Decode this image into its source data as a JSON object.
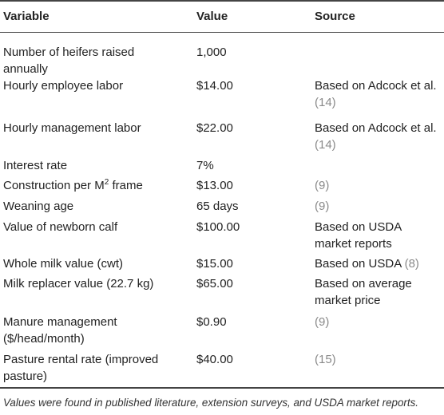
{
  "table": {
    "headers": [
      "Variable",
      "Value",
      "Source"
    ],
    "rows": [
      {
        "variable_lines": [
          "Number of heifers raised",
          "annually"
        ],
        "value": "1,000",
        "source": []
      },
      {
        "variable_lines": [
          "Hourly employee labor"
        ],
        "value": "$14.00",
        "source": [
          {
            "text": "Based on Adcock et al."
          },
          {
            "ref": "(14)"
          }
        ]
      },
      {
        "variable_lines": [
          "Hourly management labor"
        ],
        "value": "$22.00",
        "source": [
          {
            "text": "Based on Adcock et al."
          },
          {
            "ref": "(14)"
          }
        ]
      },
      {
        "variable_lines": [
          "Interest rate"
        ],
        "value": "7%",
        "source": []
      },
      {
        "variable_lines": [
          "Construction per M",
          "2",
          " frame"
        ],
        "value": "$13.00",
        "source": [
          {
            "ref": "(9)"
          }
        ]
      },
      {
        "variable_lines": [
          "Weaning age"
        ],
        "value": "65 days",
        "source": [
          {
            "ref": "(9)"
          }
        ]
      },
      {
        "variable_lines": [
          "Value of newborn calf"
        ],
        "value": "$100.00",
        "source": [
          {
            "text": "Based on USDA"
          },
          {
            "text": "market reports"
          }
        ]
      },
      {
        "variable_lines": [
          "Whole milk value (cwt)"
        ],
        "value": "$15.00",
        "source": [
          {
            "text": "Based on USDA "
          },
          {
            "ref": "(8)"
          }
        ]
      },
      {
        "variable_lines": [
          "Milk replacer value (22.7 kg)"
        ],
        "value": "$65.00",
        "source": [
          {
            "text": "Based on average"
          },
          {
            "text": "market price"
          }
        ]
      },
      {
        "variable_lines": [
          "Manure management",
          "($/head/month)"
        ],
        "value": "$0.90",
        "source": [
          {
            "ref": "(9)"
          }
        ]
      },
      {
        "variable_lines": [
          "Pasture rental rate (improved",
          "pasture)"
        ],
        "value": "$40.00",
        "source": [
          {
            "ref": "(15)"
          }
        ]
      }
    ],
    "footnote": "Values were found in published literature, extension surveys, and USDA market reports."
  }
}
